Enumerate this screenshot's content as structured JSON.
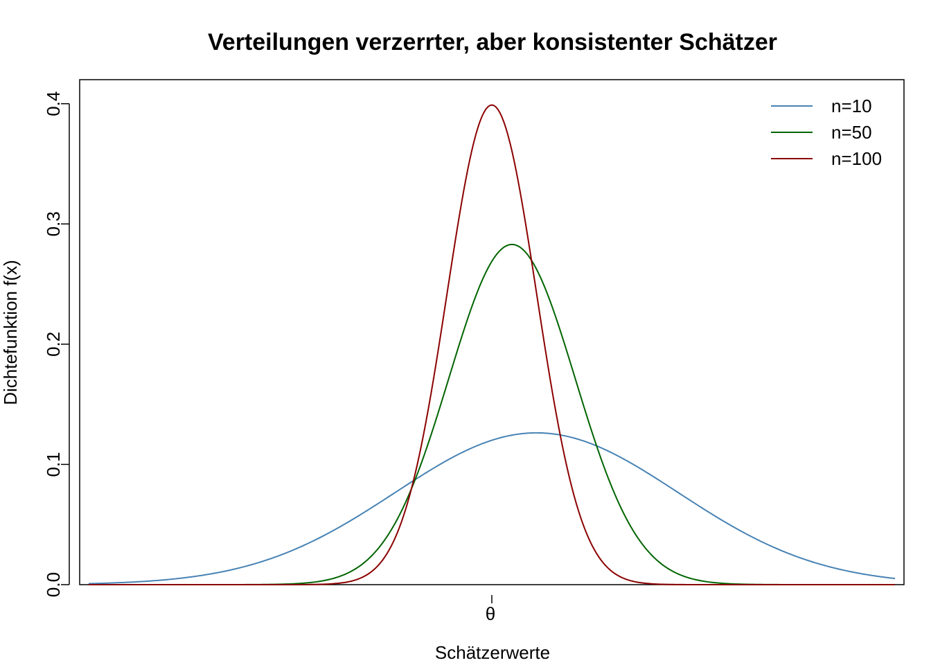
{
  "chart_data": {
    "type": "line",
    "title": "Verteilungen verzerrter, aber konsistenter Schätzer",
    "xlabel": "Schätzerwerte",
    "ylabel": "Dichtefunktion f(x)",
    "x_ticks": [
      {
        "x": 0,
        "label": "θ"
      }
    ],
    "y_ticks": [
      {
        "y": 0.0,
        "label": "0.0"
      },
      {
        "y": 0.1,
        "label": "0.1"
      },
      {
        "y": 0.2,
        "label": "0.2"
      },
      {
        "y": 0.3,
        "label": "0.3"
      },
      {
        "y": 0.4,
        "label": "0.4"
      }
    ],
    "xlim": [
      -9.2,
      9.2
    ],
    "ylim": [
      0,
      0.42
    ],
    "grid": false,
    "legend_position": "top-right",
    "series": [
      {
        "name": "n=10",
        "color": "#4682b4",
        "mean": 1.0,
        "sd": 3.16,
        "x_range": [
          -9,
          9
        ]
      },
      {
        "name": "n=50",
        "color": "#006400",
        "mean": 0.45,
        "sd": 1.41,
        "x_range": [
          -9,
          9
        ]
      },
      {
        "name": "n=100",
        "color": "#8b0000",
        "mean": 0.0,
        "sd": 1.0,
        "x_range": [
          -9,
          9
        ]
      }
    ]
  }
}
